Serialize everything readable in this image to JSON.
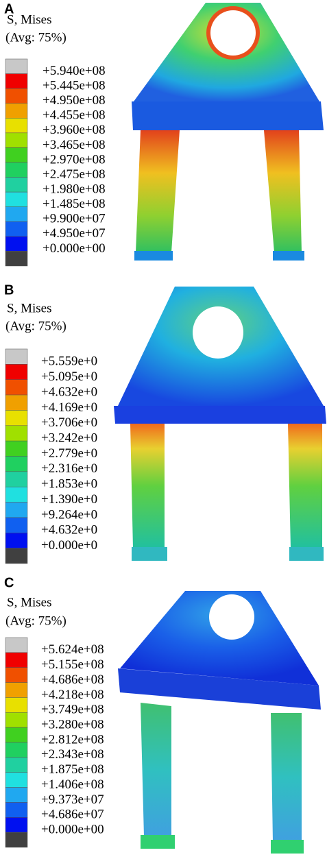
{
  "panels": [
    {
      "label": "A",
      "legend_title": "S, Mises",
      "legend_subtitle": "(Avg: 75%)",
      "legend_labels": [
        "+5.940e+08",
        "+5.445e+08",
        "+4.950e+08",
        "+4.455e+08",
        "+3.960e+08",
        "+3.465e+08",
        "+2.970e+08",
        "+2.475e+08",
        "+1.980e+08",
        "+1.485e+08",
        "+9.900e+07",
        "+4.950e+07",
        "+0.000e+00"
      ]
    },
    {
      "label": "B",
      "legend_title": "S, Mises",
      "legend_subtitle": "(Avg: 75%)",
      "legend_labels": [
        "+5.559e+0",
        "+5.095e+0",
        "+4.632e+0",
        "+4.169e+0",
        "+3.706e+0",
        "+3.242e+0",
        "+2.779e+0",
        "+2.316e+0",
        "+1.853e+0",
        "+1.390e+0",
        "+9.264e+0",
        "+4.632e+0",
        "+0.000e+0"
      ]
    },
    {
      "label": "C",
      "legend_title": "S, Mises",
      "legend_subtitle": "(Avg: 75%)",
      "legend_labels": [
        "+5.624e+08",
        "+5.155e+08",
        "+4.686e+08",
        "+4.218e+08",
        "+3.749e+08",
        "+3.280e+08",
        "+2.812e+08",
        "+2.343e+08",
        "+1.875e+08",
        "+1.406e+08",
        "+9.373e+07",
        "+4.686e+07",
        "+0.000e+00"
      ]
    }
  ]
}
